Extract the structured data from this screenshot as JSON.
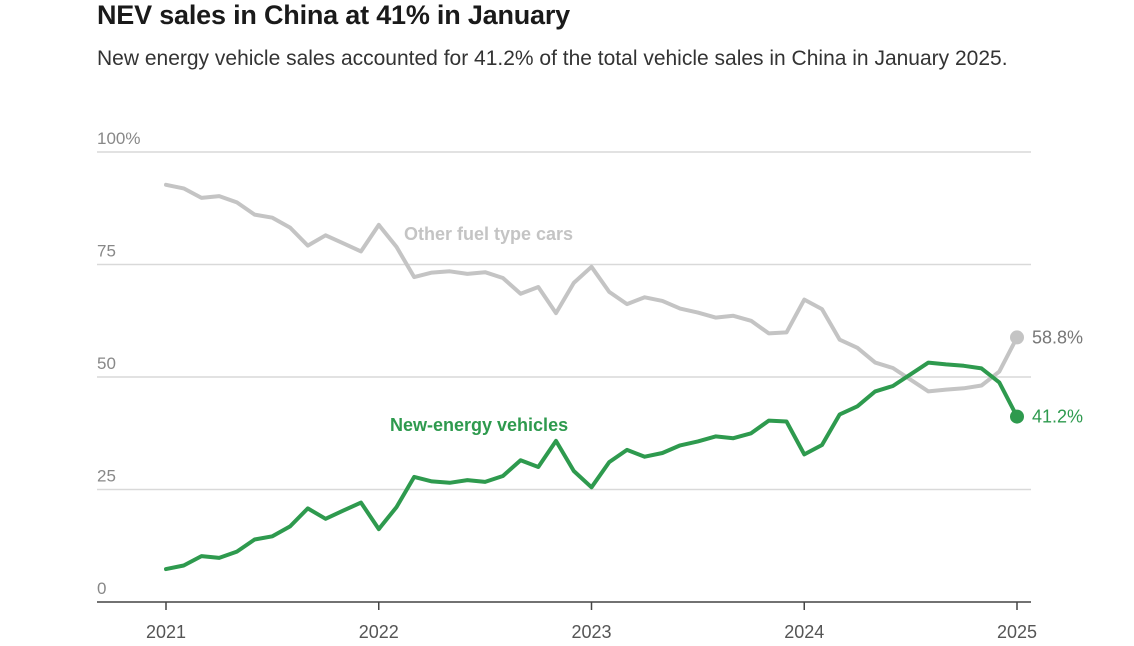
{
  "title": "NEV sales in China at 41% in January",
  "subtitle": "New energy vehicle sales accounted for 41.2% of the total vehicle sales in China in January 2025.",
  "chart_data": {
    "type": "line",
    "title": "NEV sales in China at 41% in January",
    "subtitle": "New energy vehicle sales accounted for 41.2% of the total vehicle sales in China in January 2025.",
    "ylim": [
      0,
      100
    ],
    "yticks": [
      "100%",
      "75",
      "50",
      "25",
      "0"
    ],
    "ytick_values": [
      100,
      75,
      50,
      25,
      0
    ],
    "xticks": [
      "2021",
      "2022",
      "2023",
      "2024",
      "2025"
    ],
    "xtick_values": [
      2021,
      2022,
      2023,
      2024,
      2025
    ],
    "x_unit": "year (monthly points, Jan 2021 – Jan 2025)",
    "colors": {
      "nev": "#2e9a4e",
      "other": "#c4c4c4",
      "grid": "#d9d9d9",
      "axis": "#444444",
      "tick_text": "#888888",
      "end_label_other": "#777777"
    },
    "series": [
      {
        "name": "New-energy vehicles",
        "key": "nev",
        "end_label": "41.2%",
        "values": [
          7.3,
          8.1,
          10.2,
          9.8,
          11.2,
          13.9,
          14.6,
          16.8,
          20.8,
          18.5,
          20.3,
          22.1,
          16.2,
          21.1,
          27.8,
          26.8,
          26.5,
          27.1,
          26.7,
          28.0,
          31.5,
          30.0,
          35.8,
          29.1,
          25.5,
          31.1,
          33.8,
          32.3,
          33.1,
          34.8,
          35.7,
          36.8,
          36.4,
          37.5,
          40.3,
          40.1,
          32.8,
          34.9,
          41.7,
          43.5,
          46.8,
          48.0,
          50.6,
          53.2,
          52.8,
          52.5,
          51.9,
          48.8,
          41.2
        ]
      },
      {
        "name": "Other fuel type cars",
        "key": "other",
        "end_label": "58.8%",
        "values": [
          92.7,
          91.9,
          89.8,
          90.2,
          88.8,
          86.1,
          85.4,
          83.2,
          79.2,
          81.5,
          79.7,
          77.9,
          83.8,
          78.9,
          72.2,
          73.2,
          73.5,
          72.9,
          73.3,
          72.0,
          68.5,
          70.0,
          64.2,
          70.9,
          74.5,
          68.9,
          66.2,
          67.7,
          66.9,
          65.2,
          64.3,
          63.2,
          63.6,
          62.5,
          59.7,
          59.9,
          67.2,
          65.1,
          58.3,
          56.5,
          53.2,
          52.0,
          49.4,
          46.8,
          47.2,
          47.5,
          48.1,
          51.2,
          58.8
        ]
      }
    ],
    "annotations": [
      {
        "text": "Other fuel type cars",
        "series": "other"
      },
      {
        "text": "New-energy vehicles",
        "series": "nev"
      }
    ],
    "grid": true
  }
}
